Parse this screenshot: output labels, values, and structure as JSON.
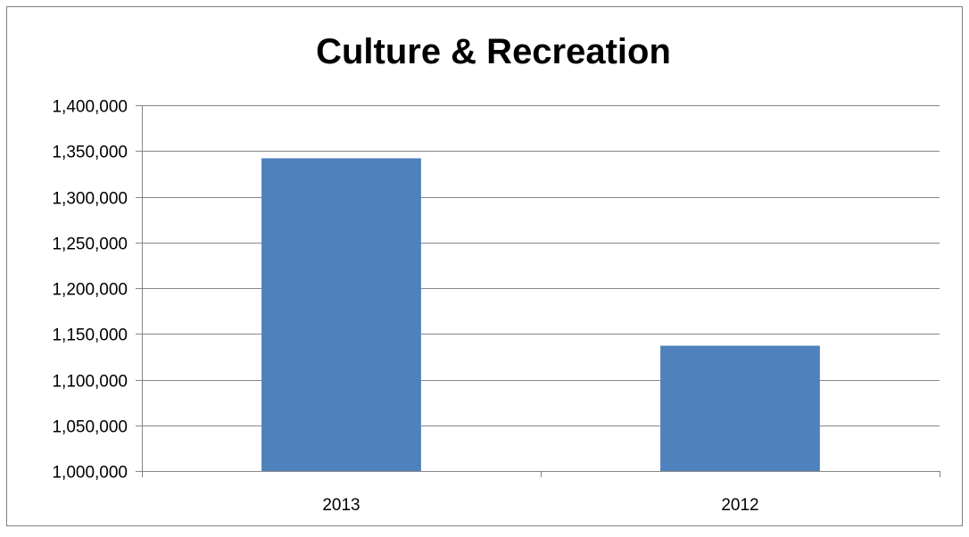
{
  "chart_data": {
    "type": "bar",
    "title": "Culture & Recreation",
    "categories": [
      "2013",
      "2012"
    ],
    "values": [
      1342000,
      1137000
    ],
    "ylim": [
      1000000,
      1400000
    ],
    "yticks": [
      1000000,
      1050000,
      1100000,
      1150000,
      1200000,
      1250000,
      1300000,
      1350000,
      1400000
    ],
    "ytick_labels": [
      "1,000,000",
      "1,050,000",
      "1,100,000",
      "1,150,000",
      "1,200,000",
      "1,250,000",
      "1,300,000",
      "1,350,000",
      "1,400,000"
    ],
    "grid": true,
    "legend": "none",
    "bar_color": "#4f81bd"
  }
}
